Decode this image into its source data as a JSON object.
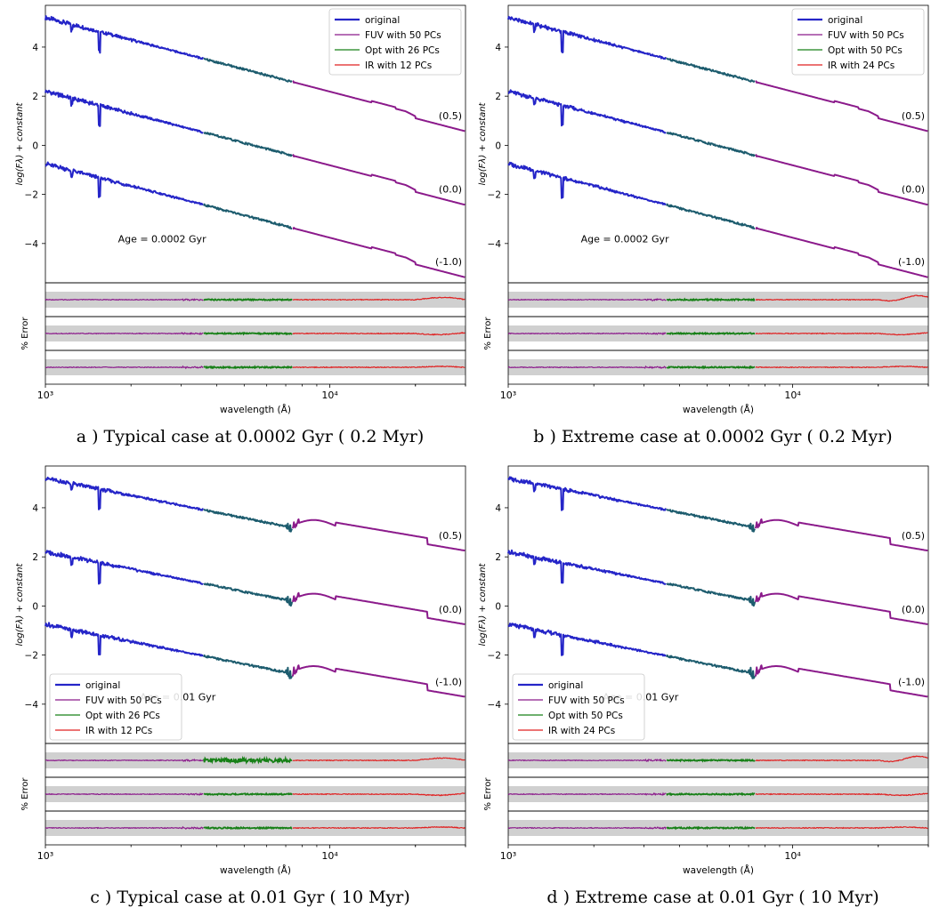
{
  "colors": {
    "original": "#2525c8",
    "fuv": "#8b1a8b",
    "opt": "#178017",
    "ir": "#e02020",
    "band": "#d0d0d0"
  },
  "chart_data": [
    {
      "type": "line",
      "caption": "a ) Typical case at 0.0002 Gyr ( 0.2 Myr)",
      "age_label": "Age = 0.0002 Gyr",
      "xlabel": "wavelength (Å)",
      "ylabel": "log(Fλ) + constant",
      "residual_ylabel": "% Error",
      "xscale": "log",
      "xlim": [
        1000,
        30000
      ],
      "ylim": [
        -5.6,
        5.7
      ],
      "x_ticks": [
        {
          "value": 1000,
          "label": "10³"
        },
        {
          "value": 10000,
          "label": "10⁴"
        }
      ],
      "y_ticks": [
        -4,
        -2,
        0,
        2,
        4
      ],
      "legend": [
        "original",
        "FUV with 50 PCs",
        "Opt with 26 PCs",
        "IR with 12 PCs"
      ],
      "legend_position": "upper-right",
      "metallicity_labels": [
        "(0.5)",
        "(0.0)",
        "(-1.0)"
      ],
      "spectrum_shape": "young",
      "spectra_y_offsets": [
        5.2,
        2.2,
        -0.75
      ],
      "extreme_residual": false
    },
    {
      "type": "line",
      "caption": "b ) Extreme case at 0.0002 Gyr ( 0.2 Myr)",
      "age_label": "Age = 0.0002 Gyr",
      "xlabel": "wavelength (Å)",
      "ylabel": "log(Fλ) + constant",
      "residual_ylabel": "% Error",
      "xscale": "log",
      "xlim": [
        1000,
        30000
      ],
      "ylim": [
        -5.6,
        5.7
      ],
      "x_ticks": [
        {
          "value": 1000,
          "label": "10³"
        },
        {
          "value": 10000,
          "label": "10⁴"
        }
      ],
      "y_ticks": [
        -4,
        -2,
        0,
        2,
        4
      ],
      "legend": [
        "original",
        "FUV with 50 PCs",
        "Opt with 50 PCs",
        "IR with 24 PCs"
      ],
      "legend_position": "upper-right",
      "metallicity_labels": [
        "(0.5)",
        "(0.0)",
        "(-1.0)"
      ],
      "spectrum_shape": "young",
      "spectra_y_offsets": [
        5.2,
        2.2,
        -0.75
      ],
      "extreme_residual": true
    },
    {
      "type": "line",
      "caption": "c ) Typical case at 0.01 Gyr ( 10 Myr)",
      "age_label": "Age = 0.01 Gyr",
      "xlabel": "wavelength (Å)",
      "ylabel": "log(Fλ) + constant",
      "residual_ylabel": "% Error",
      "xscale": "log",
      "xlim": [
        1000,
        30000
      ],
      "ylim": [
        -5.6,
        5.7
      ],
      "x_ticks": [
        {
          "value": 1000,
          "label": "10³"
        },
        {
          "value": 10000,
          "label": "10⁴"
        }
      ],
      "y_ticks": [
        -4,
        -2,
        0,
        2,
        4
      ],
      "legend": [
        "original",
        "FUV with 50 PCs",
        "Opt with 26 PCs",
        "IR with 12 PCs"
      ],
      "legend_position": "lower-left",
      "metallicity_labels": [
        "(0.5)",
        "(0.0)",
        "(-1.0)"
      ],
      "spectrum_shape": "older",
      "spectra_y_offsets": [
        5.2,
        2.2,
        -0.75
      ],
      "extreme_residual": false
    },
    {
      "type": "line",
      "caption": "d ) Extreme case at 0.01 Gyr ( 10 Myr)",
      "age_label": "Age = 0.01 Gyr",
      "xlabel": "wavelength (Å)",
      "ylabel": "log(Fλ) + constant",
      "residual_ylabel": "% Error",
      "xscale": "log",
      "xlim": [
        1000,
        30000
      ],
      "ylim": [
        -5.6,
        5.7
      ],
      "x_ticks": [
        {
          "value": 1000,
          "label": "10³"
        },
        {
          "value": 10000,
          "label": "10⁴"
        }
      ],
      "y_ticks": [
        -4,
        -2,
        0,
        2,
        4
      ],
      "legend": [
        "original",
        "FUV with 50 PCs",
        "Opt with 50 PCs",
        "IR with 24 PCs"
      ],
      "legend_position": "lower-left",
      "metallicity_labels": [
        "(0.5)",
        "(0.0)",
        "(-1.0)"
      ],
      "spectrum_shape": "older",
      "spectra_y_offsets": [
        5.2,
        2.2,
        -0.75
      ],
      "extreme_residual": true
    }
  ]
}
